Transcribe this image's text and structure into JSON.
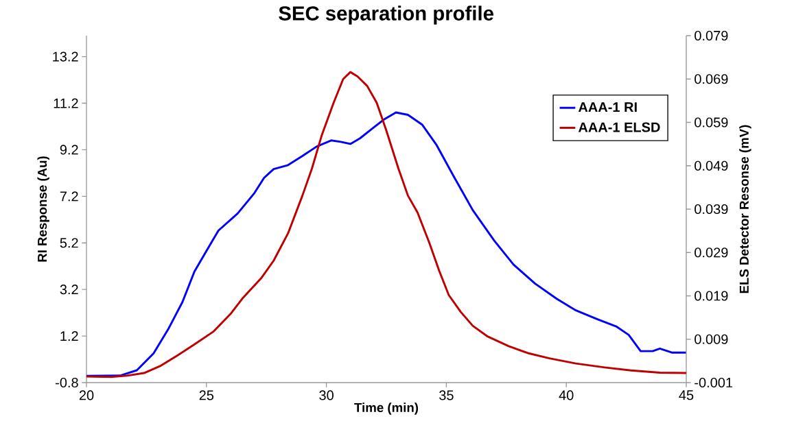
{
  "chart_data": {
    "type": "line",
    "title": "SEC separation profile",
    "xlabel": "Time (min)",
    "ylabel": "RI Response (Au)",
    "y2label": "ELS Detector Resonse (mV)",
    "xlim": [
      20,
      45
    ],
    "xticks": [
      20,
      25,
      30,
      35,
      40,
      45
    ],
    "ylim": [
      -0.8,
      14.1
    ],
    "yticks": [
      -0.8,
      1.2,
      3.2,
      5.2,
      7.2,
      9.2,
      11.2,
      13.2
    ],
    "y2lim": [
      -0.001,
      0.079
    ],
    "y2ticks": [
      -0.001,
      0.009,
      0.019,
      0.029,
      0.039,
      0.049,
      0.059,
      0.069,
      0.079
    ],
    "legend": "top right",
    "grid": false,
    "marker": "none",
    "line_style": "solid",
    "series": [
      {
        "name": "AAA-1 RI",
        "color": "#0000ff",
        "x": [
          20,
          21.4,
          22.1,
          22.8,
          23.4,
          24.0,
          24.5,
          25,
          25.5,
          26.3,
          27.0,
          27.4,
          27.8,
          28.4,
          29.0,
          29.6,
          30.2,
          30.6,
          31.0,
          31.4,
          32.0,
          32.4,
          32.9,
          33.4,
          34.0,
          34.6,
          35.3,
          36.1,
          37.0,
          37.8,
          38.7,
          39.6,
          40.4,
          41.3,
          42.1,
          42.6,
          43.1,
          43.6,
          43.9,
          44.4,
          45
        ],
        "values": [
          -0.51,
          -0.5,
          -0.27,
          0.46,
          1.48,
          2.66,
          3.97,
          4.85,
          5.73,
          6.46,
          7.34,
          7.99,
          8.37,
          8.54,
          8.93,
          9.34,
          9.6,
          9.54,
          9.45,
          9.69,
          10.18,
          10.5,
          10.8,
          10.7,
          10.27,
          9.39,
          8.07,
          6.61,
          5.29,
          4.27,
          3.45,
          2.8,
          2.3,
          1.92,
          1.6,
          1.25,
          0.55,
          0.55,
          0.66,
          0.49,
          0.49
        ]
      },
      {
        "name": "AAA-1 ELSD",
        "color": "#c00000",
        "axis": "y2",
        "x": [
          20,
          21,
          21.7,
          22.4,
          23.1,
          23.8,
          24.5,
          25.3,
          26.0,
          26.5,
          27.3,
          27.8,
          28.4,
          29.0,
          29.4,
          29.8,
          30.3,
          30.7,
          31.0,
          31.3,
          31.7,
          32.1,
          32.5,
          33.0,
          33.4,
          33.8,
          34.3,
          34.7,
          35.1,
          35.6,
          36.1,
          36.7,
          37.6,
          38.4,
          39.3,
          40.4,
          41.6,
          42.7,
          43.9,
          45
        ],
        "values": [
          0.0004,
          0.0003,
          0.0006,
          0.0012,
          0.0029,
          0.0053,
          0.0078,
          0.0108,
          0.0148,
          0.0184,
          0.0232,
          0.0271,
          0.0334,
          0.0421,
          0.0484,
          0.0559,
          0.0635,
          0.069,
          0.0706,
          0.0696,
          0.0674,
          0.0635,
          0.0571,
          0.0484,
          0.0421,
          0.0382,
          0.0311,
          0.0248,
          0.0192,
          0.0153,
          0.0121,
          0.0097,
          0.0074,
          0.0058,
          0.0046,
          0.0034,
          0.0025,
          0.0018,
          0.0013,
          0.0012
        ]
      }
    ]
  }
}
